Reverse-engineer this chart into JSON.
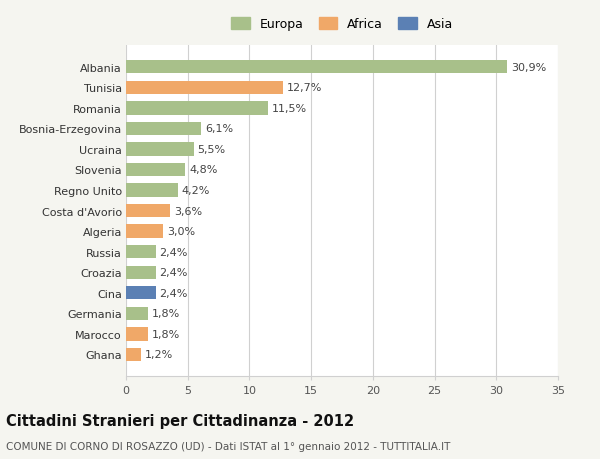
{
  "categories": [
    "Albania",
    "Tunisia",
    "Romania",
    "Bosnia-Erzegovina",
    "Ucraina",
    "Slovenia",
    "Regno Unito",
    "Costa d'Avorio",
    "Algeria",
    "Russia",
    "Croazia",
    "Cina",
    "Germania",
    "Marocco",
    "Ghana"
  ],
  "values": [
    30.9,
    12.7,
    11.5,
    6.1,
    5.5,
    4.8,
    4.2,
    3.6,
    3.0,
    2.4,
    2.4,
    2.4,
    1.8,
    1.8,
    1.2
  ],
  "labels": [
    "30,9%",
    "12,7%",
    "11,5%",
    "6,1%",
    "5,5%",
    "4,8%",
    "4,2%",
    "3,6%",
    "3,0%",
    "2,4%",
    "2,4%",
    "2,4%",
    "1,8%",
    "1,8%",
    "1,2%"
  ],
  "continents": [
    "Europa",
    "Africa",
    "Europa",
    "Europa",
    "Europa",
    "Europa",
    "Europa",
    "Africa",
    "Africa",
    "Europa",
    "Europa",
    "Asia",
    "Europa",
    "Africa",
    "Africa"
  ],
  "colors": {
    "Europa": "#a8c08a",
    "Africa": "#f0a868",
    "Asia": "#5b80b4"
  },
  "legend": [
    "Europa",
    "Africa",
    "Asia"
  ],
  "legend_colors": [
    "#a8c08a",
    "#f0a868",
    "#5b80b4"
  ],
  "title_main": "Cittadini Stranieri per Cittadinanza - 2012",
  "title_sub": "COMUNE DI CORNO DI ROSAZZO (UD) - Dati ISTAT al 1° gennaio 2012 - TUTTITALIA.IT",
  "xlim": [
    0,
    35
  ],
  "xticks": [
    0,
    5,
    10,
    15,
    20,
    25,
    30,
    35
  ],
  "background_color": "#f5f5f0",
  "plot_background": "#ffffff",
  "grid_color": "#d0d0d0",
  "bar_height": 0.65,
  "label_fontsize": 8,
  "tick_fontsize": 8,
  "ytick_fontsize": 8,
  "title_fontsize": 10.5,
  "subtitle_fontsize": 7.5
}
